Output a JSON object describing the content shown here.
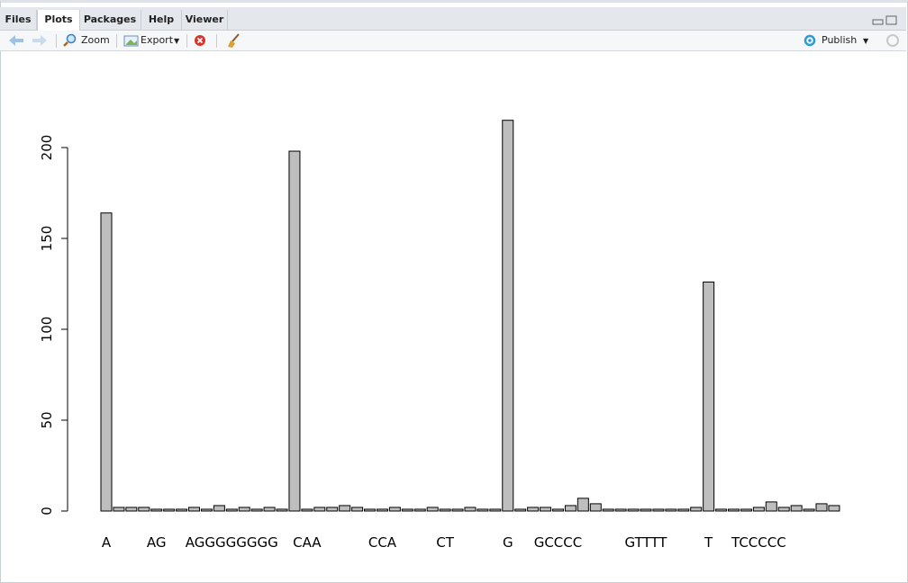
{
  "ui": {
    "tabs": [
      "Files",
      "Plots",
      "Packages",
      "Help",
      "Viewer"
    ],
    "active_tab": 1,
    "toolbar": {
      "zoom": "Zoom",
      "export": "Export",
      "publish": "Publish"
    }
  },
  "chart_data": {
    "type": "bar",
    "categories": [
      "A",
      null,
      null,
      null,
      "AG",
      null,
      null,
      null,
      null,
      null,
      "AGGGGGGGG",
      null,
      null,
      null,
      null,
      null,
      "CAA",
      null,
      null,
      null,
      null,
      null,
      "CCA",
      null,
      null,
      null,
      null,
      "CT",
      null,
      null,
      null,
      null,
      "G",
      null,
      null,
      null,
      "GCCCC",
      null,
      null,
      null,
      null,
      null,
      null,
      "GTTTT",
      null,
      null,
      null,
      null,
      "T",
      null,
      null,
      null,
      "TCCCCC",
      null,
      null,
      null,
      null,
      null,
      null
    ],
    "values": [
      164,
      2,
      2,
      2,
      1,
      1,
      1,
      2,
      1,
      3,
      1,
      2,
      1,
      2,
      1,
      198,
      1,
      2,
      2,
      3,
      2,
      1,
      1,
      2,
      1,
      1,
      2,
      1,
      1,
      2,
      1,
      1,
      215,
      1,
      2,
      2,
      1,
      3,
      7,
      4,
      1,
      1,
      1,
      1,
      1,
      1,
      1,
      2,
      126,
      1,
      1,
      1,
      2,
      5,
      2,
      3,
      1,
      4,
      3
    ],
    "color": "#bebebe",
    "ylim": [
      0,
      215
    ],
    "yticks": [
      0,
      50,
      100,
      150,
      200
    ]
  }
}
